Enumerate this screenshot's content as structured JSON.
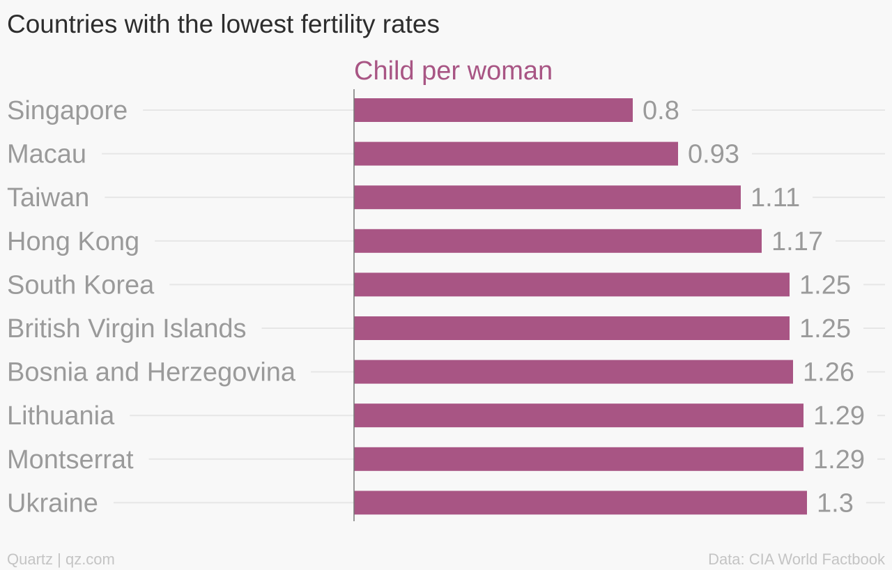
{
  "chart_data": {
    "type": "bar",
    "orientation": "horizontal",
    "title": "Countries with the lowest fertility rates",
    "series": [
      {
        "name": "Child per woman",
        "color": "#a85584",
        "values": [
          0.8,
          0.93,
          1.11,
          1.17,
          1.25,
          1.25,
          1.26,
          1.29,
          1.29,
          1.3
        ]
      }
    ],
    "categories": [
      "Singapore",
      "Macau",
      "Taiwan",
      "Hong Kong",
      "South Korea",
      "British Virgin Islands",
      "Bosnia and Herzegovina",
      "Lithuania",
      "Montserrat",
      "Ukraine"
    ],
    "value_labels": [
      "0.8",
      "0.93",
      "1.11",
      "1.17",
      "1.25",
      "1.25",
      "1.26",
      "1.29",
      "1.29",
      "1.3"
    ],
    "xlim": [
      0,
      1.3
    ],
    "grid": true,
    "legend": "top"
  },
  "footer": {
    "source_left": "Quartz | qz.com",
    "source_right": "Data: CIA World Factbook"
  },
  "colors": {
    "bar": "#a85584",
    "gridline": "#e6e6e6",
    "axis": "#777777",
    "label": "#9a9a9a"
  }
}
